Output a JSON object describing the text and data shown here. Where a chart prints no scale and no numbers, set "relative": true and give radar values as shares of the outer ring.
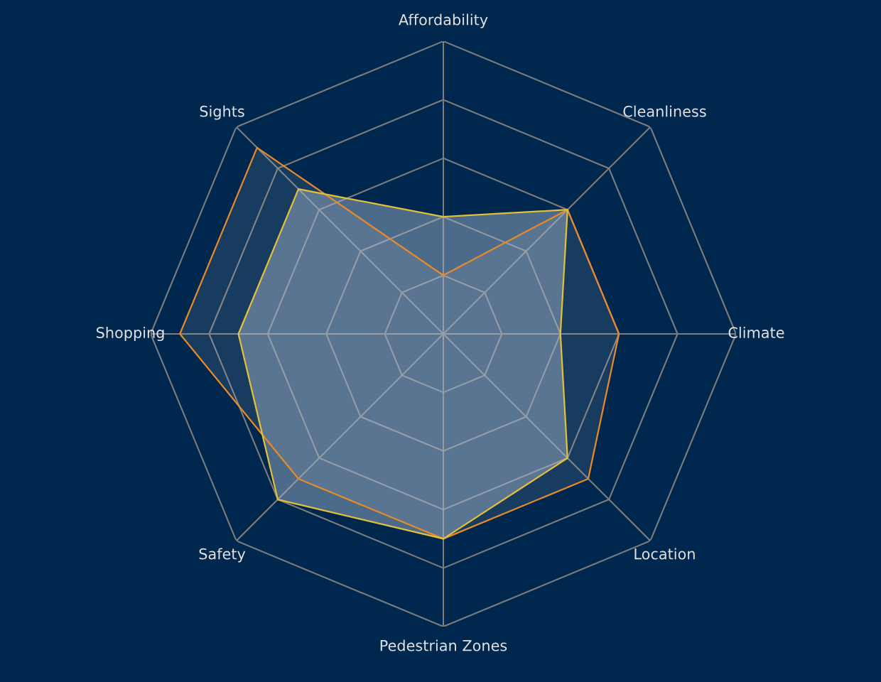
{
  "chart_data": {
    "type": "radar",
    "relative": true,
    "categories": [
      "Affordability",
      "Cleanliness",
      "Climate",
      "Location",
      "Pedestrian Zones",
      "Safety",
      "Shopping",
      "Sights"
    ],
    "series": [
      {
        "color": "#e8892b",
        "values": [
          0.2,
          0.6,
          0.6,
          0.7,
          0.7,
          0.7,
          0.9,
          0.9
        ]
      },
      {
        "color": "#e3c03a",
        "values": [
          0.4,
          0.6,
          0.4,
          0.6,
          0.7,
          0.8,
          0.7,
          0.7
        ]
      }
    ]
  }
}
